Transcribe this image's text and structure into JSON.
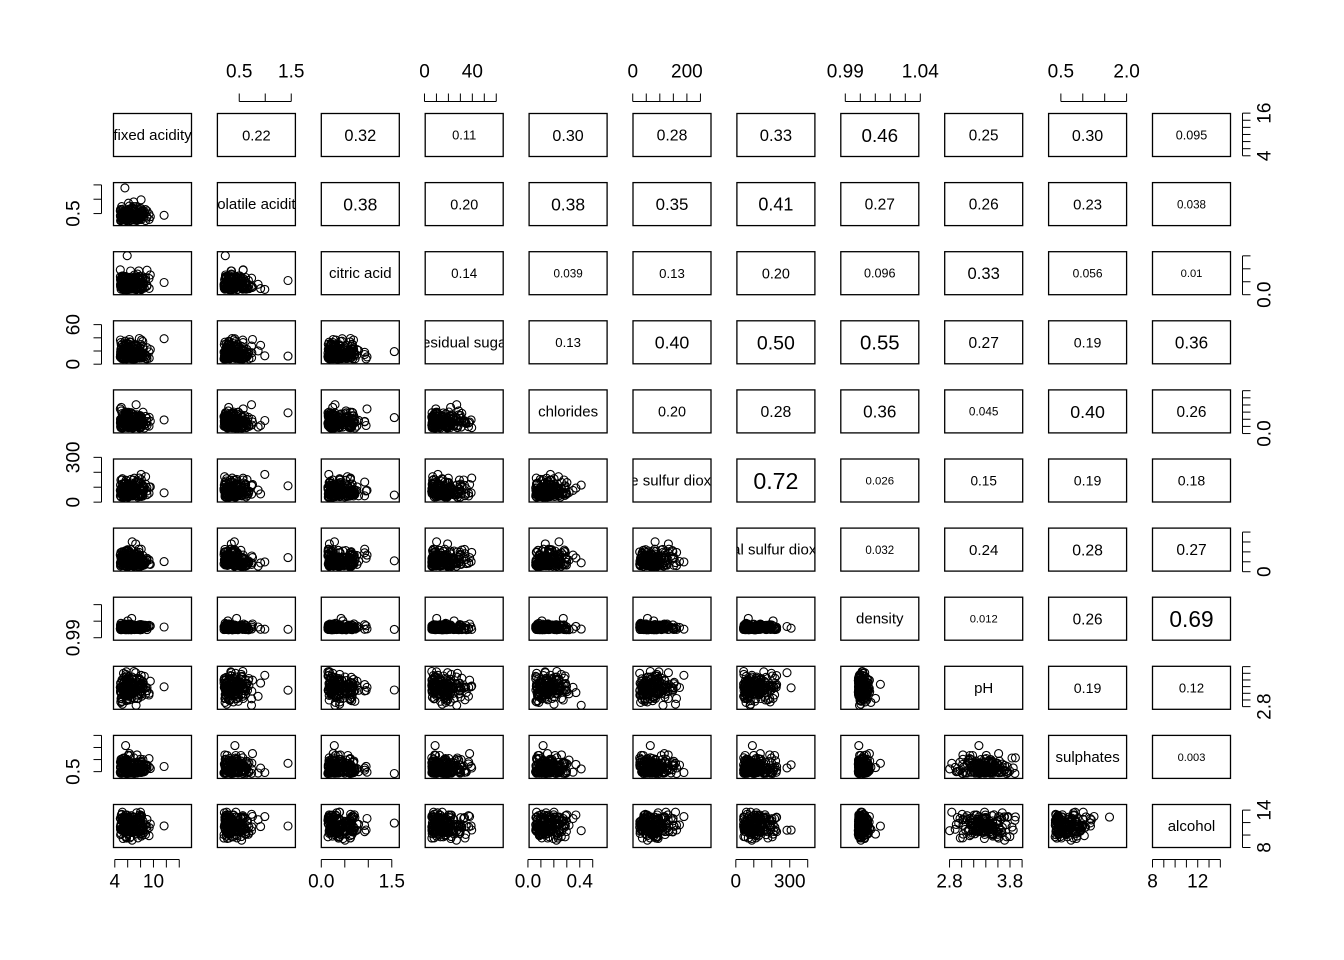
{
  "chart_data": {
    "type": "scatter",
    "subtype": "pairs-matrix",
    "colors": {
      "ink": "#000000",
      "background": "#ffffff"
    },
    "variables": [
      "fixed acidity",
      "volatile acidity",
      "citric acid",
      "residual sugar",
      "chlorides",
      "free sulfur dioxide",
      "total sulfur dioxide",
      "density",
      "pH",
      "sulphates",
      "alcohol"
    ],
    "upper_panel": "absolute correlation (text size proportional to value)",
    "correlations": [
      [
        null,
        "0.22",
        "0.32",
        "0.11",
        "0.30",
        "0.28",
        "0.33",
        "0.46",
        "0.25",
        "0.30",
        "0.095"
      ],
      [
        null,
        null,
        "0.38",
        "0.20",
        "0.38",
        "0.35",
        "0.41",
        "0.27",
        "0.26",
        "0.23",
        "0.038"
      ],
      [
        null,
        null,
        null,
        "0.14",
        "0.039",
        "0.13",
        "0.20",
        "0.096",
        "0.33",
        "0.056",
        "0.01"
      ],
      [
        null,
        null,
        null,
        null,
        "0.13",
        "0.40",
        "0.50",
        "0.55",
        "0.27",
        "0.19",
        "0.36"
      ],
      [
        null,
        null,
        null,
        null,
        null,
        "0.20",
        "0.28",
        "0.36",
        "0.045",
        "0.40",
        "0.26"
      ],
      [
        null,
        null,
        null,
        null,
        null,
        null,
        "0.72",
        "0.026",
        "0.15",
        "0.19",
        "0.18"
      ],
      [
        null,
        null,
        null,
        null,
        null,
        null,
        null,
        "0.032",
        "0.24",
        "0.28",
        "0.27"
      ],
      [
        null,
        null,
        null,
        null,
        null,
        null,
        null,
        null,
        "0.012",
        "0.26",
        "0.69"
      ],
      [
        null,
        null,
        null,
        null,
        null,
        null,
        null,
        null,
        null,
        "0.19",
        "0.12"
      ],
      [
        null,
        null,
        null,
        null,
        null,
        null,
        null,
        null,
        null,
        null,
        "0.003"
      ],
      [
        null,
        null,
        null,
        null,
        null,
        null,
        null,
        null,
        null,
        null,
        null
      ]
    ],
    "ranges": [
      [
        3.8,
        15.9
      ],
      [
        0.08,
        1.58
      ],
      [
        0.0,
        1.66
      ],
      [
        0.6,
        65.8
      ],
      [
        0.009,
        0.611
      ],
      [
        1,
        289
      ],
      [
        6,
        440
      ],
      [
        0.987,
        1.039
      ],
      [
        2.72,
        4.01
      ],
      [
        0.22,
        2.0
      ],
      [
        8.0,
        14.9
      ]
    ],
    "axes": {
      "top": [
        {
          "var": 1,
          "ticks": [
            0.5,
            1.0,
            1.5
          ],
          "labels": [
            "0.5",
            "1.5"
          ]
        },
        {
          "var": 3,
          "ticks": [
            0,
            10,
            20,
            30,
            40,
            50,
            60
          ],
          "labels": [
            "0",
            "40"
          ]
        },
        {
          "var": 5,
          "ticks": [
            0,
            50,
            100,
            150,
            200,
            250
          ],
          "labels": [
            "0",
            "200"
          ]
        },
        {
          "var": 7,
          "ticks": [
            0.99,
            1.0,
            1.01,
            1.02,
            1.03,
            1.04
          ],
          "labels": [
            "0.99",
            "1.04"
          ]
        },
        {
          "var": 9,
          "ticks": [
            0.5,
            1.0,
            1.5,
            2.0
          ],
          "labels": [
            "0.5",
            "2.0"
          ]
        }
      ],
      "bottom": [
        {
          "var": 0,
          "ticks": [
            4,
            6,
            8,
            10,
            12,
            14
          ],
          "labels": [
            "4",
            "10"
          ]
        },
        {
          "var": 2,
          "ticks": [
            0.0,
            0.5,
            1.0,
            1.5
          ],
          "labels": [
            "0.0",
            "1.5"
          ]
        },
        {
          "var": 4,
          "ticks": [
            0.0,
            0.1,
            0.2,
            0.3,
            0.4,
            0.5
          ],
          "labels": [
            "0.0",
            "0.4"
          ]
        },
        {
          "var": 6,
          "ticks": [
            0,
            100,
            200,
            300,
            400
          ],
          "labels": [
            "0",
            "300"
          ]
        },
        {
          "var": 8,
          "ticks": [
            2.8,
            3.0,
            3.2,
            3.4,
            3.6,
            3.8,
            4.0
          ],
          "labels": [
            "2.8",
            "3.8"
          ]
        },
        {
          "var": 10,
          "ticks": [
            8,
            9,
            10,
            11,
            12,
            13,
            14
          ],
          "labels": [
            "8",
            "12"
          ]
        }
      ],
      "left": [
        {
          "var": 1,
          "ticks": [
            0.5,
            1.0,
            1.5
          ],
          "labels": [
            "0.5"
          ]
        },
        {
          "var": 3,
          "ticks": [
            0,
            20,
            40,
            60
          ],
          "labels": [
            "0",
            "60"
          ]
        },
        {
          "var": 5,
          "ticks": [
            0,
            100,
            200,
            300
          ],
          "labels": [
            "0",
            "300"
          ]
        },
        {
          "var": 7,
          "ticks": [
            0.99,
            1.01,
            1.03
          ],
          "labels": [
            "0.99"
          ]
        },
        {
          "var": 9,
          "ticks": [
            0.5,
            1.0,
            1.5,
            2.0
          ],
          "labels": [
            "0.5"
          ]
        }
      ],
      "right": [
        {
          "var": 0,
          "ticks": [
            4,
            6,
            8,
            10,
            12,
            14,
            16
          ],
          "labels": [
            "4",
            "16"
          ]
        },
        {
          "var": 2,
          "ticks": [
            0.0,
            0.5,
            1.0,
            1.5
          ],
          "labels": [
            "0.0"
          ]
        },
        {
          "var": 4,
          "ticks": [
            0.0,
            0.1,
            0.2,
            0.3,
            0.4,
            0.5,
            0.6
          ],
          "labels": [
            "0.0"
          ]
        },
        {
          "var": 6,
          "ticks": [
            0,
            100,
            200,
            300,
            400
          ],
          "labels": [
            "0"
          ]
        },
        {
          "var": 8,
          "ticks": [
            2.8,
            3.0,
            3.2,
            3.4,
            3.6,
            3.8,
            4.0
          ],
          "labels": [
            "2.8"
          ]
        },
        {
          "var": 10,
          "ticks": [
            8,
            10,
            12,
            14
          ],
          "labels": [
            "8",
            "14"
          ]
        }
      ]
    }
  }
}
